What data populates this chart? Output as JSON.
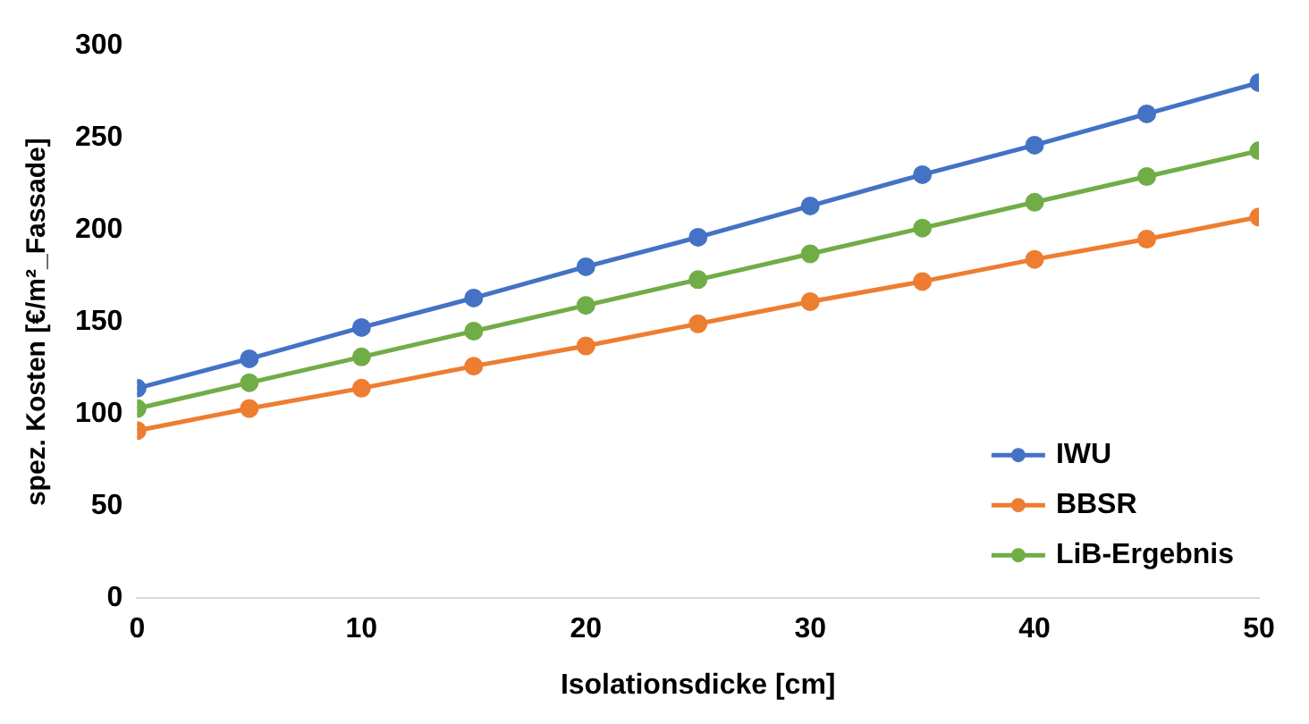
{
  "chart_data": {
    "type": "line",
    "xlabel": "Isolationsdicke [cm]",
    "ylabel": "spez. Kosten [€/m²_Fassade]",
    "x": [
      0,
      5,
      10,
      15,
      20,
      25,
      30,
      35,
      40,
      45,
      50
    ],
    "series": [
      {
        "name": "IWU",
        "color": "#4472c4",
        "values": [
          114,
          130,
          147,
          163,
          180,
          196,
          213,
          230,
          246,
          263,
          280
        ]
      },
      {
        "name": "BBSR",
        "color": "#ed7d31",
        "values": [
          91,
          103,
          114,
          126,
          137,
          149,
          161,
          172,
          184,
          195,
          207
        ]
      },
      {
        "name": "LiB-Ergebnis",
        "color": "#70ad47",
        "values": [
          103,
          117,
          131,
          145,
          159,
          173,
          187,
          201,
          215,
          229,
          243
        ]
      }
    ],
    "xlim": [
      0,
      50
    ],
    "xticks": [
      0,
      10,
      20,
      30,
      40,
      50
    ],
    "ylim": [
      0,
      300
    ],
    "yticks": [
      0,
      50,
      100,
      150,
      200,
      250,
      300
    ],
    "grid": false,
    "legend": "bottom right",
    "marker": "circle",
    "line_style": "solid"
  }
}
